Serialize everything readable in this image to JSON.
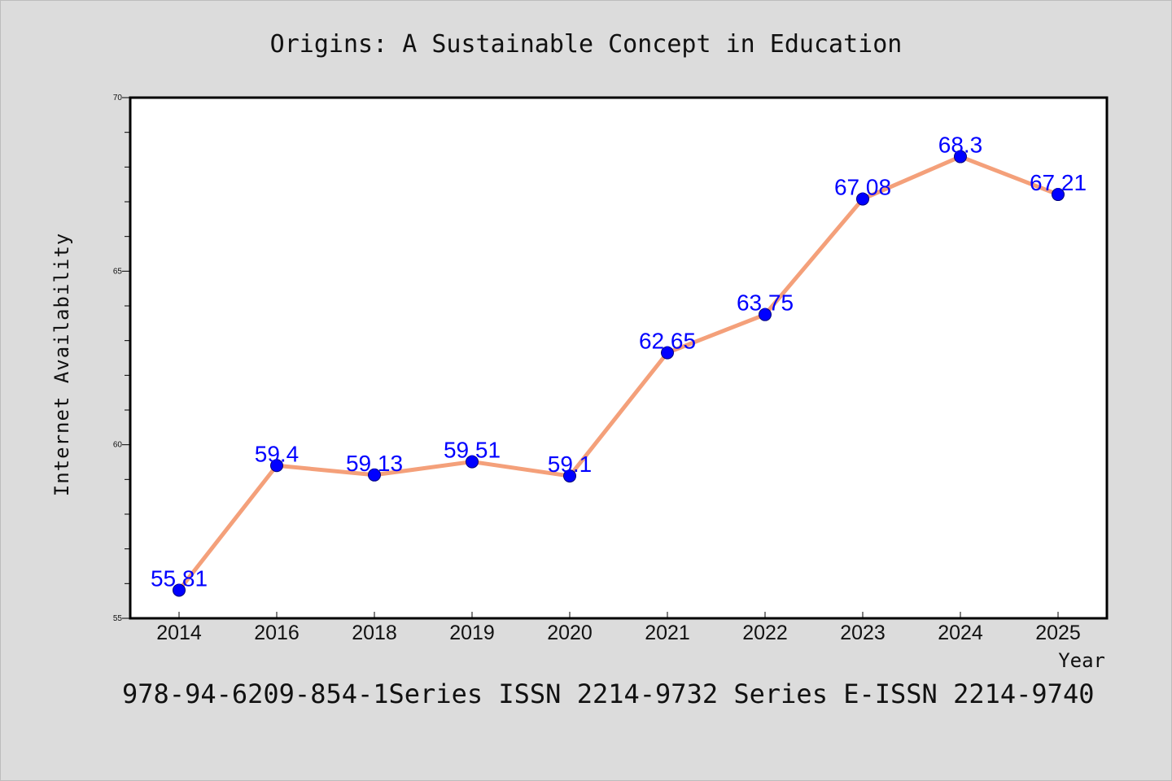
{
  "chart_data": {
    "type": "line",
    "title": "Origins: A Sustainable Concept in Education",
    "xlabel": "Year",
    "ylabel": "Internet Availability",
    "categories": [
      "2014",
      "2016",
      "2018",
      "2019",
      "2020",
      "2021",
      "2022",
      "2023",
      "2024",
      "2025"
    ],
    "series": [
      {
        "values": [
          55.81,
          59.4,
          59.13,
          59.51,
          59.1,
          62.65,
          63.75,
          67.08,
          68.3,
          67.21
        ],
        "line_color": "#f4a07a",
        "marker_color": "#0000ff"
      }
    ],
    "data_labels": [
      "55.81",
      "59.4",
      "59.13",
      "59.51",
      "59.1",
      "62.65",
      "63.75",
      "67.08",
      "68.3",
      "67.21"
    ],
    "ylim": [
      55,
      70
    ],
    "yticks": [
      "55",
      "60",
      "65",
      "70"
    ],
    "grid": false,
    "legend": "none"
  },
  "footer": "978-94-6209-854-1Series ISSN 2214-9732 Series E-ISSN 2214-9740",
  "colors": {
    "background": "#dcdcdc",
    "plot_background": "#ffffff",
    "axis": "#000000"
  }
}
